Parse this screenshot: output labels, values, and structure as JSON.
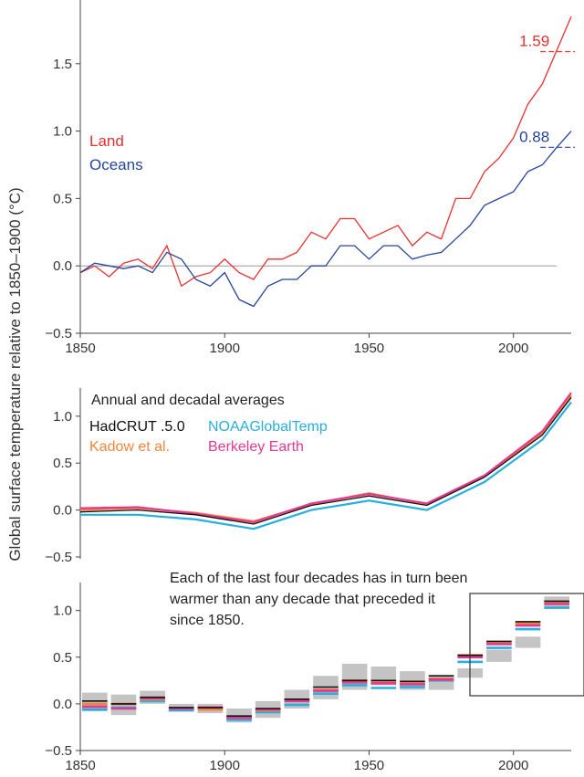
{
  "figure": {
    "ylabel": "Global surface temperature relative to 1850–1900 (°C)"
  },
  "chart_data": [
    {
      "type": "line",
      "xlim": [
        1850,
        2020
      ],
      "ylim": [
        -0.5,
        2.0
      ],
      "x_ticks": [
        1850,
        1900,
        1950,
        2000
      ],
      "x_tick_labels": [
        "1850",
        "1900",
        "1950",
        "2000"
      ],
      "y_ticks": [
        -0.5,
        0.0,
        0.5,
        1.0,
        1.5
      ],
      "y_tick_labels": [
        "−0.5",
        "0.0",
        "0.5",
        "1.0",
        "1.5"
      ],
      "series": [
        {
          "name": "Land",
          "color": "#e8302f",
          "x": [
            1850,
            1855,
            1860,
            1865,
            1870,
            1875,
            1880,
            1885,
            1890,
            1895,
            1900,
            1905,
            1910,
            1915,
            1920,
            1925,
            1930,
            1935,
            1940,
            1945,
            1950,
            1955,
            1960,
            1965,
            1970,
            1975,
            1980,
            1985,
            1990,
            1995,
            2000,
            2005,
            2010,
            2015,
            2020
          ],
          "values": [
            -0.05,
            0.0,
            -0.08,
            0.02,
            0.05,
            -0.02,
            0.15,
            -0.15,
            -0.08,
            -0.05,
            0.05,
            -0.05,
            -0.1,
            0.05,
            0.05,
            0.1,
            0.25,
            0.2,
            0.35,
            0.35,
            0.2,
            0.25,
            0.3,
            0.15,
            0.25,
            0.2,
            0.5,
            0.5,
            0.7,
            0.8,
            0.95,
            1.2,
            1.35,
            1.6,
            1.85
          ]
        },
        {
          "name": "Oceans",
          "color": "#27449a",
          "x": [
            1850,
            1855,
            1860,
            1865,
            1870,
            1875,
            1880,
            1885,
            1890,
            1895,
            1900,
            1905,
            1910,
            1915,
            1920,
            1925,
            1930,
            1935,
            1940,
            1945,
            1950,
            1955,
            1960,
            1965,
            1970,
            1975,
            1980,
            1985,
            1990,
            1995,
            2000,
            2005,
            2010,
            2015,
            2020
          ],
          "values": [
            -0.05,
            0.02,
            0.0,
            -0.02,
            0.0,
            -0.05,
            0.1,
            0.05,
            -0.1,
            -0.15,
            -0.05,
            -0.25,
            -0.3,
            -0.15,
            -0.1,
            -0.1,
            0.0,
            0.0,
            0.15,
            0.15,
            0.05,
            0.15,
            0.15,
            0.05,
            0.08,
            0.1,
            0.2,
            0.3,
            0.45,
            0.5,
            0.55,
            0.7,
            0.75,
            0.88,
            1.0
          ]
        }
      ],
      "reference_line": 0.0,
      "annotations": [
        {
          "text": "1.59",
          "x": 2015,
          "y": 1.59,
          "color": "#e8302f"
        },
        {
          "text": "0.88",
          "x": 2015,
          "y": 0.88,
          "color": "#27449a"
        }
      ]
    },
    {
      "type": "line",
      "title": "Annual and decadal averages",
      "xlim": [
        1850,
        2020
      ],
      "ylim": [
        -0.5,
        1.3
      ],
      "y_ticks": [
        -0.5,
        0.0,
        0.5,
        1.0
      ],
      "y_tick_labels": [
        "−0.5",
        "0.0",
        "0.5",
        "1.0"
      ],
      "series": [
        {
          "name": "HadCRUT .5.0",
          "color": "#111111",
          "x": [
            1850,
            1870,
            1890,
            1910,
            1930,
            1950,
            1970,
            1990,
            2010,
            2020
          ],
          "values": [
            -0.02,
            0.0,
            -0.05,
            -0.15,
            0.05,
            0.15,
            0.05,
            0.35,
            0.8,
            1.2
          ]
        },
        {
          "name": "NOAAGlobalTemp",
          "color": "#29aee0",
          "x": [
            1850,
            1870,
            1890,
            1910,
            1930,
            1950,
            1970,
            1990,
            2010,
            2020
          ],
          "values": [
            -0.05,
            -0.05,
            -0.1,
            -0.2,
            0.0,
            0.1,
            0.0,
            0.3,
            0.75,
            1.15
          ]
        },
        {
          "name": "Kadow et al.",
          "color": "#f0863d",
          "x": [
            1850,
            1870,
            1890,
            1910,
            1930,
            1950,
            1970,
            1990,
            2010,
            2020
          ],
          "values": [
            0.0,
            0.02,
            -0.03,
            -0.12,
            0.06,
            0.18,
            0.06,
            0.36,
            0.82,
            1.22
          ]
        },
        {
          "name": "Berkeley Earth",
          "color": "#e4398e",
          "x": [
            1850,
            1870,
            1890,
            1910,
            1930,
            1950,
            1970,
            1990,
            2010,
            2020
          ],
          "values": [
            0.02,
            0.03,
            -0.04,
            -0.13,
            0.07,
            0.17,
            0.07,
            0.37,
            0.84,
            1.25
          ]
        }
      ]
    },
    {
      "type": "bar",
      "annotation": "Each of the last four decades has in turn been warmer than any decade that preceded it since 1850.",
      "xlim": [
        1850,
        2020
      ],
      "ylim": [
        -0.5,
        1.3
      ],
      "x_ticks": [
        1850,
        1900,
        1950,
        2000
      ],
      "x_tick_labels": [
        "1850",
        "1900",
        "1950",
        "2000"
      ],
      "y_ticks": [
        -0.5,
        0.0,
        0.5,
        1.0
      ],
      "y_tick_labels": [
        "−0.5",
        "0.0",
        "0.5",
        "1.0"
      ],
      "categories": [
        "1850s",
        "1860s",
        "1870s",
        "1880s",
        "1890s",
        "1900s",
        "1910s",
        "1920s",
        "1930s",
        "1940s",
        "1950s",
        "1960s",
        "1970s",
        "1980s",
        "1990s",
        "2000s",
        "2010s"
      ],
      "decade_start": [
        1850,
        1860,
        1870,
        1880,
        1890,
        1900,
        1910,
        1920,
        1930,
        1940,
        1950,
        1960,
        1970,
        1980,
        1990,
        2000,
        2010
      ],
      "range_low": [
        -0.08,
        -0.12,
        0.0,
        -0.08,
        -0.1,
        -0.2,
        -0.15,
        -0.05,
        0.05,
        0.15,
        0.2,
        0.15,
        0.15,
        0.28,
        0.45,
        0.6,
        1.02
      ],
      "range_high": [
        0.12,
        0.1,
        0.14,
        0.0,
        0.0,
        -0.05,
        0.03,
        0.15,
        0.3,
        0.43,
        0.4,
        0.35,
        0.3,
        0.38,
        0.58,
        0.72,
        1.15
      ],
      "series": [
        {
          "name": "HadCRUT .5.0",
          "color": "#111111",
          "values": [
            0.03,
            0.0,
            0.07,
            -0.04,
            -0.04,
            -0.13,
            -0.05,
            0.05,
            0.18,
            0.25,
            0.25,
            0.24,
            0.3,
            0.52,
            0.67,
            0.88,
            1.1
          ]
        },
        {
          "name": "NOAAGlobalTemp",
          "color": "#29aee0",
          "values": [
            -0.06,
            -0.04,
            0.03,
            -0.07,
            -0.05,
            -0.17,
            -0.09,
            -0.01,
            0.11,
            0.2,
            0.17,
            0.18,
            0.25,
            0.45,
            0.6,
            0.8,
            1.03
          ]
        },
        {
          "name": "Kadow et al.",
          "color": "#f0863d",
          "values": [
            0.0,
            0.0,
            0.05,
            -0.05,
            -0.06,
            -0.14,
            -0.07,
            0.04,
            0.15,
            0.25,
            0.23,
            0.22,
            0.27,
            0.52,
            0.65,
            0.86,
            1.09
          ]
        },
        {
          "name": "Berkeley Earth",
          "color": "#e4398e",
          "values": [
            -0.03,
            -0.05,
            0.06,
            -0.05,
            -0.04,
            -0.15,
            -0.06,
            0.03,
            0.14,
            0.23,
            0.22,
            0.21,
            0.26,
            0.5,
            0.64,
            0.84,
            1.07
          ]
        }
      ]
    }
  ]
}
